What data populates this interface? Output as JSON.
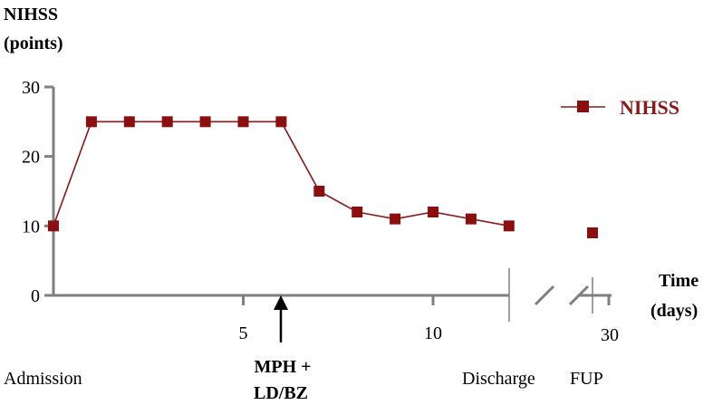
{
  "chart_data": {
    "type": "line",
    "title": "",
    "ylabel": "NIHSS\n(points)",
    "ylabel_line1": "NIHSS",
    "ylabel_line2": "(points)",
    "xlabel_line1": "Time",
    "xlabel_line2": "(days)",
    "ylim": [
      0,
      30
    ],
    "yticks": [
      0,
      10,
      20,
      30
    ],
    "xticks": [
      {
        "x": 5,
        "label": "5"
      },
      {
        "x": 10,
        "label": "10"
      },
      {
        "x": 30,
        "label": "30"
      }
    ],
    "series": [
      {
        "name": "NIHSS",
        "color": "#8b0f0f",
        "points": [
          {
            "x": 0,
            "y": 10
          },
          {
            "x": 1,
            "y": 25
          },
          {
            "x": 2,
            "y": 25
          },
          {
            "x": 3,
            "y": 25
          },
          {
            "x": 4,
            "y": 25
          },
          {
            "x": 5,
            "y": 25
          },
          {
            "x": 6,
            "y": 25
          },
          {
            "x": 7,
            "y": 15
          },
          {
            "x": 8,
            "y": 12
          },
          {
            "x": 9,
            "y": 11
          },
          {
            "x": 10,
            "y": 12
          },
          {
            "x": 11,
            "y": 11
          },
          {
            "x": 12,
            "y": 10
          }
        ],
        "followup_point": {
          "x": 29,
          "y": 9
        }
      }
    ],
    "legend": {
      "label": "NIHSS",
      "position": "top-right"
    },
    "annotations": {
      "arrow_at_x": 6,
      "intervention_line1": "MPH +",
      "intervention_line2": "LD/BZ",
      "admission": "Admission",
      "discharge": "Discharge",
      "fup": "FUP"
    }
  }
}
